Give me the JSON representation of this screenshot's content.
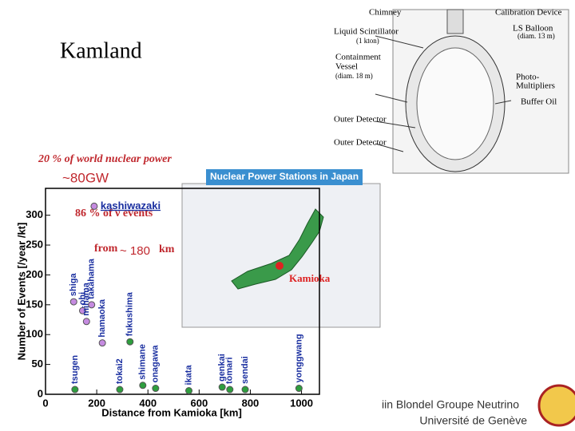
{
  "slide": {
    "title": "Kamland",
    "power_note": "20 % of world nuclear power",
    "power_total": "~80GW",
    "events_note": "86 % of ν events",
    "events_from": "from",
    "events_distance": "~ 180",
    "events_unit": "km",
    "map_title": "Nuclear Power Stations in Japan",
    "map_site": "Kamioka",
    "detector_labels": [
      "Chimney",
      "Calibration Device",
      "Liquid Scintillator",
      "(1 kton)",
      "LS Balloon",
      "(diam. 13 m)",
      "Containment",
      "Vessel",
      "(diam. 18 m)",
      "Photo-",
      "Multipliers",
      "Buffer Oil",
      "Outer Detector",
      "Outer Detector"
    ],
    "footer": [
      "iin Blondel Groupe Neutrino",
      "Université de Genève"
    ]
  },
  "chart_data": {
    "type": "scatter",
    "xlabel": "Distance from Kamioka [km]",
    "ylabel": "Number of Events [/year /kt]",
    "xlim": [
      0,
      1070
    ],
    "xticks": [
      0,
      200,
      400,
      600,
      800,
      1000
    ],
    "ylim": [
      0,
      345
    ],
    "yticks": [
      0,
      50,
      100,
      150,
      200,
      250,
      300
    ],
    "series": [
      {
        "color": "#c58be0",
        "x": [
          190
        ],
        "values": [
          315
        ],
        "labels": [
          "kashiwazaki"
        ]
      },
      {
        "color": "#c58be0",
        "x": [
          110,
          145,
          160,
          180,
          222
        ],
        "values": [
          155,
          140,
          122,
          150,
          86
        ],
        "labels": [
          "shiga",
          "ohi",
          "mihama",
          "takahama",
          "hamaoka"
        ]
      },
      {
        "color": "#2e9e3e",
        "x": [
          115,
          290,
          330,
          380,
          430,
          560,
          690,
          720,
          780,
          990
        ],
        "values": [
          8,
          8,
          88,
          15,
          10,
          6,
          12,
          8,
          8,
          10
        ],
        "labels": [
          "tsugen",
          "tokai2",
          "fukushima",
          "shimane",
          "onagawa",
          "ikata",
          "genkai",
          "tomari",
          "sendai",
          "yonggwang"
        ]
      }
    ]
  }
}
